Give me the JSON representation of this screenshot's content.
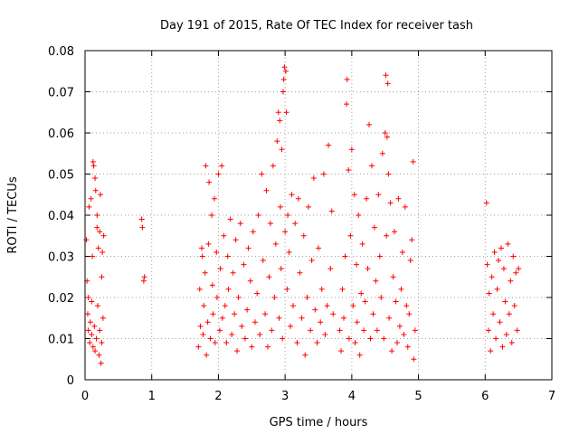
{
  "chart_data": {
    "type": "scatter",
    "title": "Day 191 of 2015, Rate Of TEC Index for receiver tash",
    "xlabel": "GPS time / hours",
    "ylabel": "ROTI / TECUs",
    "xlim": [
      0,
      7
    ],
    "ylim": [
      0,
      0.08
    ],
    "grid": true,
    "marker": "+",
    "color": "#ff0000",
    "x_ticks": [
      "0",
      "1",
      "2",
      "3",
      "4",
      "5",
      "6",
      "7"
    ],
    "y_ticks": [
      "0",
      "0.01",
      "0.02",
      "0.03",
      "0.04",
      "0.05",
      "0.06",
      "0.07",
      "0.08"
    ],
    "series": [
      {
        "name": "ROTI",
        "points": [
          [
            0.02,
            0.034
          ],
          [
            0.03,
            0.024
          ],
          [
            0.04,
            0.016
          ],
          [
            0.05,
            0.012
          ],
          [
            0.05,
            0.02
          ],
          [
            0.06,
            0.042
          ],
          [
            0.07,
            0.009
          ],
          [
            0.08,
            0.014
          ],
          [
            0.09,
            0.044
          ],
          [
            0.1,
            0.011
          ],
          [
            0.1,
            0.019
          ],
          [
            0.11,
            0.03
          ],
          [
            0.12,
            0.053
          ],
          [
            0.12,
            0.008
          ],
          [
            0.13,
            0.052
          ],
          [
            0.14,
            0.013
          ],
          [
            0.15,
            0.007
          ],
          [
            0.15,
            0.049
          ],
          [
            0.16,
            0.046
          ],
          [
            0.17,
            0.01
          ],
          [
            0.18,
            0.04
          ],
          [
            0.18,
            0.037
          ],
          [
            0.19,
            0.018
          ],
          [
            0.2,
            0.032
          ],
          [
            0.21,
            0.006
          ],
          [
            0.22,
            0.012
          ],
          [
            0.22,
            0.036
          ],
          [
            0.23,
            0.045
          ],
          [
            0.24,
            0.004
          ],
          [
            0.25,
            0.009
          ],
          [
            0.25,
            0.025
          ],
          [
            0.26,
            0.031
          ],
          [
            0.27,
            0.015
          ],
          [
            0.28,
            0.035
          ],
          [
            0.85,
            0.039
          ],
          [
            0.86,
            0.037
          ],
          [
            0.88,
            0.024
          ],
          [
            0.89,
            0.025
          ],
          [
            1.7,
            0.008
          ],
          [
            1.72,
            0.022
          ],
          [
            1.73,
            0.013
          ],
          [
            1.75,
            0.032
          ],
          [
            1.76,
            0.03
          ],
          [
            1.77,
            0.011
          ],
          [
            1.78,
            0.018
          ],
          [
            1.8,
            0.026
          ],
          [
            1.81,
            0.052
          ],
          [
            1.82,
            0.006
          ],
          [
            1.84,
            0.014
          ],
          [
            1.85,
            0.033
          ],
          [
            1.86,
            0.048
          ],
          [
            1.88,
            0.01
          ],
          [
            1.9,
            0.04
          ],
          [
            1.91,
            0.023
          ],
          [
            1.92,
            0.016
          ],
          [
            1.94,
            0.044
          ],
          [
            1.95,
            0.009
          ],
          [
            1.97,
            0.031
          ],
          [
            1.98,
            0.02
          ],
          [
            2.0,
            0.05
          ],
          [
            2.02,
            0.012
          ],
          [
            2.03,
            0.027
          ],
          [
            2.05,
            0.052
          ],
          [
            2.06,
            0.015
          ],
          [
            2.08,
            0.035
          ],
          [
            2.1,
            0.018
          ],
          [
            2.12,
            0.009
          ],
          [
            2.14,
            0.03
          ],
          [
            2.15,
            0.022
          ],
          [
            2.18,
            0.039
          ],
          [
            2.2,
            0.011
          ],
          [
            2.22,
            0.026
          ],
          [
            2.24,
            0.016
          ],
          [
            2.26,
            0.034
          ],
          [
            2.28,
            0.007
          ],
          [
            2.3,
            0.02
          ],
          [
            2.33,
            0.038
          ],
          [
            2.35,
            0.013
          ],
          [
            2.38,
            0.028
          ],
          [
            2.4,
            0.01
          ],
          [
            2.43,
            0.017
          ],
          [
            2.45,
            0.032
          ],
          [
            2.48,
            0.024
          ],
          [
            2.5,
            0.008
          ],
          [
            2.52,
            0.036
          ],
          [
            2.55,
            0.014
          ],
          [
            2.58,
            0.021
          ],
          [
            2.6,
            0.04
          ],
          [
            2.62,
            0.011
          ],
          [
            2.65,
            0.05
          ],
          [
            2.67,
            0.029
          ],
          [
            2.7,
            0.016
          ],
          [
            2.72,
            0.046
          ],
          [
            2.74,
            0.008
          ],
          [
            2.76,
            0.025
          ],
          [
            2.78,
            0.038
          ],
          [
            2.8,
            0.012
          ],
          [
            2.82,
            0.052
          ],
          [
            2.84,
            0.02
          ],
          [
            2.86,
            0.033
          ],
          [
            2.88,
            0.058
          ],
          [
            2.9,
            0.065
          ],
          [
            2.91,
            0.015
          ],
          [
            2.92,
            0.063
          ],
          [
            2.93,
            0.042
          ],
          [
            2.94,
            0.027
          ],
          [
            2.95,
            0.056
          ],
          [
            2.96,
            0.01
          ],
          [
            2.97,
            0.07
          ],
          [
            2.98,
            0.073
          ],
          [
            2.99,
            0.076
          ],
          [
            3.0,
            0.036
          ],
          [
            3.01,
            0.075
          ],
          [
            3.02,
            0.065
          ],
          [
            3.03,
            0.022
          ],
          [
            3.04,
            0.04
          ],
          [
            3.06,
            0.031
          ],
          [
            3.08,
            0.013
          ],
          [
            3.1,
            0.045
          ],
          [
            3.12,
            0.018
          ],
          [
            3.15,
            0.038
          ],
          [
            3.18,
            0.009
          ],
          [
            3.2,
            0.044
          ],
          [
            3.22,
            0.026
          ],
          [
            3.25,
            0.015
          ],
          [
            3.28,
            0.035
          ],
          [
            3.3,
            0.006
          ],
          [
            3.33,
            0.02
          ],
          [
            3.35,
            0.042
          ],
          [
            3.38,
            0.012
          ],
          [
            3.4,
            0.029
          ],
          [
            3.43,
            0.049
          ],
          [
            3.45,
            0.017
          ],
          [
            3.48,
            0.009
          ],
          [
            3.5,
            0.032
          ],
          [
            3.53,
            0.014
          ],
          [
            3.55,
            0.022
          ],
          [
            3.58,
            0.05
          ],
          [
            3.6,
            0.011
          ],
          [
            3.63,
            0.018
          ],
          [
            3.65,
            0.057
          ],
          [
            3.68,
            0.027
          ],
          [
            3.7,
            0.041
          ],
          [
            3.72,
            0.016
          ],
          [
            3.82,
            0.012
          ],
          [
            3.84,
            0.007
          ],
          [
            3.86,
            0.022
          ],
          [
            3.88,
            0.015
          ],
          [
            3.9,
            0.03
          ],
          [
            3.92,
            0.067
          ],
          [
            3.93,
            0.073
          ],
          [
            3.95,
            0.051
          ],
          [
            3.96,
            0.01
          ],
          [
            3.98,
            0.035
          ],
          [
            4.0,
            0.056
          ],
          [
            4.02,
            0.018
          ],
          [
            4.04,
            0.045
          ],
          [
            4.05,
            0.009
          ],
          [
            4.07,
            0.028
          ],
          [
            4.08,
            0.014
          ],
          [
            4.1,
            0.04
          ],
          [
            4.12,
            0.006
          ],
          [
            4.14,
            0.021
          ],
          [
            4.16,
            0.033
          ],
          [
            4.18,
            0.012
          ],
          [
            4.2,
            0.019
          ],
          [
            4.22,
            0.044
          ],
          [
            4.24,
            0.027
          ],
          [
            4.26,
            0.062
          ],
          [
            4.28,
            0.01
          ],
          [
            4.3,
            0.052
          ],
          [
            4.32,
            0.016
          ],
          [
            4.34,
            0.037
          ],
          [
            4.36,
            0.024
          ],
          [
            4.38,
            0.012
          ],
          [
            4.4,
            0.045
          ],
          [
            4.42,
            0.03
          ],
          [
            4.44,
            0.02
          ],
          [
            4.46,
            0.055
          ],
          [
            4.48,
            0.01
          ],
          [
            4.5,
            0.06
          ],
          [
            4.51,
            0.074
          ],
          [
            4.52,
            0.035
          ],
          [
            4.53,
            0.059
          ],
          [
            4.54,
            0.072
          ],
          [
            4.55,
            0.05
          ],
          [
            4.56,
            0.015
          ],
          [
            4.58,
            0.043
          ],
          [
            4.6,
            0.007
          ],
          [
            4.62,
            0.025
          ],
          [
            4.64,
            0.036
          ],
          [
            4.66,
            0.019
          ],
          [
            4.68,
            0.009
          ],
          [
            4.7,
            0.044
          ],
          [
            4.72,
            0.013
          ],
          [
            4.74,
            0.022
          ],
          [
            4.76,
            0.031
          ],
          [
            4.78,
            0.011
          ],
          [
            4.8,
            0.042
          ],
          [
            4.82,
            0.018
          ],
          [
            4.84,
            0.008
          ],
          [
            4.86,
            0.016
          ],
          [
            4.88,
            0.029
          ],
          [
            4.9,
            0.034
          ],
          [
            4.92,
            0.053
          ],
          [
            4.93,
            0.005
          ],
          [
            4.95,
            0.012
          ],
          [
            6.02,
            0.043
          ],
          [
            6.03,
            0.028
          ],
          [
            6.05,
            0.012
          ],
          [
            6.06,
            0.021
          ],
          [
            6.08,
            0.007
          ],
          [
            6.1,
            0.025
          ],
          [
            6.12,
            0.016
          ],
          [
            6.14,
            0.031
          ],
          [
            6.16,
            0.01
          ],
          [
            6.18,
            0.022
          ],
          [
            6.2,
            0.029
          ],
          [
            6.22,
            0.014
          ],
          [
            6.24,
            0.032
          ],
          [
            6.26,
            0.008
          ],
          [
            6.28,
            0.027
          ],
          [
            6.3,
            0.019
          ],
          [
            6.32,
            0.011
          ],
          [
            6.34,
            0.033
          ],
          [
            6.36,
            0.016
          ],
          [
            6.38,
            0.024
          ],
          [
            6.4,
            0.009
          ],
          [
            6.42,
            0.03
          ],
          [
            6.44,
            0.018
          ],
          [
            6.46,
            0.026
          ],
          [
            6.48,
            0.012
          ],
          [
            6.5,
            0.027
          ]
        ]
      }
    ]
  }
}
